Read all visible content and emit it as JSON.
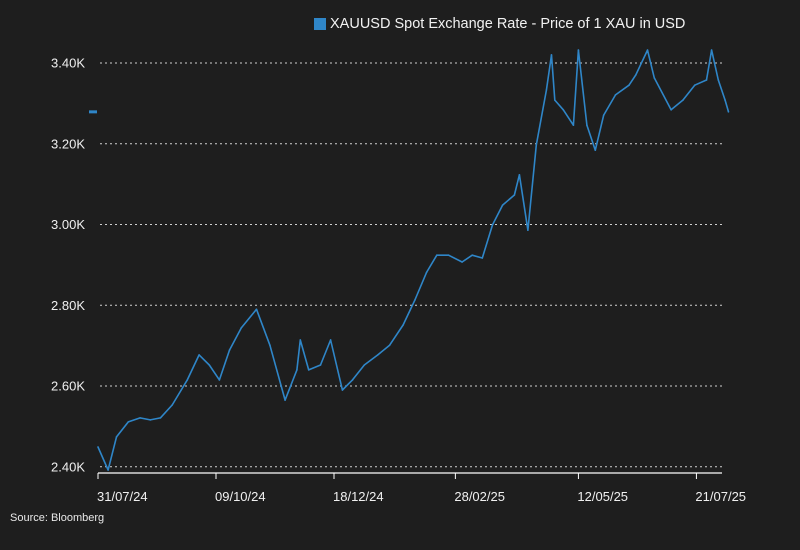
{
  "chart_data": {
    "type": "line",
    "title": "",
    "legend": {
      "label": "XAUUSD Spot Exchange Rate - Price of 1 XAU in USD",
      "placement": "top"
    },
    "source": "Source: Bloomberg",
    "xlabel": "",
    "ylabel": "",
    "ylim": [
      2383,
      3490
    ],
    "y_ticks": [
      {
        "value": 2400,
        "label": "2.40K"
      },
      {
        "value": 2600,
        "label": "2.60K"
      },
      {
        "value": 2800,
        "label": "2.80K"
      },
      {
        "value": 3000,
        "label": "3.00K"
      },
      {
        "value": 3200,
        "label": "3.20K"
      },
      {
        "value": 3400,
        "label": "3.40K"
      }
    ],
    "x_ticks": [
      {
        "date": "2024-07-31",
        "label": "31/07/24"
      },
      {
        "date": "2024-10-09",
        "label": "09/10/24"
      },
      {
        "date": "2024-12-18",
        "label": "18/12/24"
      },
      {
        "date": "2025-02-28",
        "label": "28/02/25"
      },
      {
        "date": "2025-05-12",
        "label": "12/05/25"
      },
      {
        "date": "2025-07-21",
        "label": "21/07/25"
      }
    ],
    "grid": "horizontal dotted",
    "colors": {
      "series": "#2f86c8",
      "background": "#1e1e1e",
      "grid": "#d0d0d0"
    },
    "last_value_marker": 3279,
    "series": [
      {
        "name": "XAUUSD Spot Exchange Rate - Price of 1 XAU in USD",
        "x": [
          "2024-07-31",
          "2024-08-06",
          "2024-08-11",
          "2024-08-18",
          "2024-08-25",
          "2024-08-31",
          "2024-09-06",
          "2024-09-13",
          "2024-09-22",
          "2024-09-29",
          "2024-10-05",
          "2024-10-11",
          "2024-10-17",
          "2024-10-24",
          "2024-11-02",
          "2024-11-10",
          "2024-11-19",
          "2024-11-26",
          "2024-11-28",
          "2024-12-03",
          "2024-12-10",
          "2024-12-16",
          "2024-12-23",
          "2024-12-29",
          "2025-01-05",
          "2025-01-13",
          "2025-01-20",
          "2025-01-28",
          "2025-02-04",
          "2025-02-11",
          "2025-02-17",
          "2025-02-24",
          "2025-03-04",
          "2025-03-10",
          "2025-03-16",
          "2025-03-22",
          "2025-03-28",
          "2025-04-04",
          "2025-04-07",
          "2025-04-12",
          "2025-04-17",
          "2025-04-23",
          "2025-04-26",
          "2025-04-28",
          "2025-05-03",
          "2025-05-09",
          "2025-05-12",
          "2025-05-17",
          "2025-05-22",
          "2025-05-27",
          "2025-06-03",
          "2025-06-11",
          "2025-06-15",
          "2025-06-22",
          "2025-06-26",
          "2025-07-06",
          "2025-07-13",
          "2025-07-20",
          "2025-07-27",
          "2025-07-30",
          "2025-08-03",
          "2025-08-07",
          "2025-08-09"
        ],
        "values": [
          2449,
          2392,
          2474,
          2511,
          2521,
          2516,
          2521,
          2553,
          2615,
          2677,
          2652,
          2615,
          2689,
          2744,
          2790,
          2701,
          2565,
          2640,
          2714,
          2640,
          2652,
          2714,
          2590,
          2615,
          2652,
          2677,
          2701,
          2751,
          2813,
          2882,
          2924,
          2924,
          2907,
          2924,
          2917,
          2999,
          3048,
          3073,
          3123,
          2986,
          3197,
          3333,
          3420,
          3308,
          3284,
          3246,
          3432,
          3246,
          3184,
          3271,
          3321,
          3345,
          3370,
          3432,
          3363,
          3284,
          3308,
          3345,
          3358,
          3432,
          3358,
          3308,
          3279
        ]
      }
    ]
  }
}
